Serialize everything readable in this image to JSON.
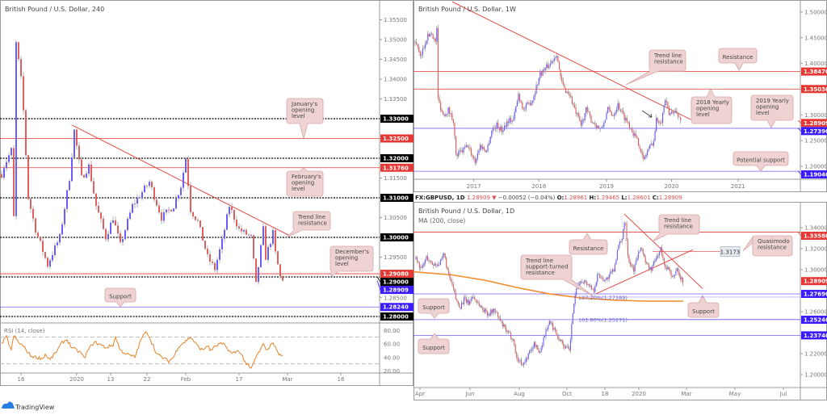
{
  "colors": {
    "up": "#6a5cff",
    "down": "#e06060",
    "wick": "#a0a0a0",
    "red_level": "#e53935",
    "blue_level": "#3b1cff",
    "black_level": "#000000",
    "callout_bg": "#efd3d3",
    "callout_border": "#d8a5a5",
    "ma": "#f08c2e",
    "rsi": "#e6832a"
  },
  "branding": {
    "logo_text": "TradingView"
  },
  "chart_data": [
    {
      "id": "h4",
      "type": "line",
      "title": "British Pound / U.S. Dollar, 240",
      "x_ticks": [
        {
          "x": 8,
          "label": "16"
        },
        {
          "x": 31,
          "label": "2020"
        },
        {
          "x": 45,
          "label": "13"
        },
        {
          "x": 60,
          "label": "22"
        },
        {
          "x": 76,
          "label": "Feb"
        },
        {
          "x": 98,
          "label": "17"
        },
        {
          "x": 118,
          "label": "Mar"
        },
        {
          "x": 140,
          "label": "16"
        }
      ],
      "y_ticks": [
        "1.35500",
        "1.35000",
        "1.34500",
        "1.34000",
        "1.33500",
        "1.31500",
        "1.30500",
        "1.29500",
        "1.28500"
      ],
      "ylim": [
        1.2775,
        1.3585
      ],
      "close_path": [
        [
          0,
          1.316
        ],
        [
          1,
          1.318
        ],
        [
          4,
          1.322
        ],
        [
          5,
          1.305
        ],
        [
          6,
          1.349
        ],
        [
          8,
          1.34
        ],
        [
          9,
          1.332
        ],
        [
          11,
          1.31
        ],
        [
          14,
          1.302
        ],
        [
          19,
          1.293
        ],
        [
          21,
          1.296
        ],
        [
          24,
          1.3
        ],
        [
          28,
          1.315
        ],
        [
          30,
          1.327
        ],
        [
          33,
          1.315
        ],
        [
          36,
          1.318
        ],
        [
          39,
          1.308
        ],
        [
          43,
          1.3
        ],
        [
          46,
          1.305
        ],
        [
          49,
          1.298
        ],
        [
          54,
          1.308
        ],
        [
          61,
          1.314
        ],
        [
          66,
          1.305
        ],
        [
          71,
          1.308
        ],
        [
          74,
          1.313
        ],
        [
          76,
          1.32
        ],
        [
          78,
          1.307
        ],
        [
          81,
          1.304
        ],
        [
          85,
          1.295
        ],
        [
          88,
          1.292
        ],
        [
          91,
          1.299
        ],
        [
          94,
          1.308
        ],
        [
          98,
          1.302
        ],
        [
          103,
          1.3
        ],
        [
          105,
          1.288
        ],
        [
          108,
          1.302
        ],
        [
          109,
          1.295
        ],
        [
          112,
          1.301
        ],
        [
          113,
          1.296
        ],
        [
          115,
          1.29
        ],
        [
          116,
          1.28909
        ]
      ],
      "levels": [
        {
          "price": 1.33,
          "label": "1.33000",
          "style": "black"
        },
        {
          "price": 1.325,
          "label": "1.32500",
          "style": "red"
        },
        {
          "price": 1.32,
          "label": "1.32000",
          "style": "black"
        },
        {
          "price": 1.3176,
          "label": "1.31760",
          "style": "red"
        },
        {
          "price": 1.31,
          "label": "1.31000",
          "style": "black"
        },
        {
          "price": 1.3,
          "label": "1.30000",
          "style": "black"
        },
        {
          "price": 1.2908,
          "label": "1.29080",
          "style": "red"
        },
        {
          "price": 1.29,
          "label": "1.29000",
          "style": "black"
        },
        {
          "price": 1.28909,
          "label": "1.28909",
          "style": "bluetag"
        },
        {
          "price": 1.2824,
          "label": "1.28240",
          "style": "blue"
        },
        {
          "price": 1.28,
          "label": "1.28000",
          "style": "black"
        }
      ],
      "trendlines": [
        {
          "from": [
            29,
            1.3284
          ],
          "to": [
            119,
            1.3004
          ]
        }
      ],
      "annotations": [
        {
          "text": [
            "January's",
            "opening",
            "level"
          ]
        },
        {
          "text": [
            "February's",
            "opening",
            "level"
          ]
        },
        {
          "text": [
            "Trend line",
            "resistance"
          ]
        },
        {
          "text": [
            "December's",
            "opening",
            "level"
          ]
        },
        {
          "text": [
            "Support"
          ]
        }
      ],
      "rsi": {
        "label": "RSI (14, close)",
        "ticks": [
          "80.00",
          "60.00",
          "40.00",
          "20.00"
        ],
        "bands": [
          70,
          30
        ],
        "values": [
          [
            0,
            60
          ],
          [
            2,
            70
          ],
          [
            4,
            50
          ],
          [
            5,
            72
          ],
          [
            7,
            62
          ],
          [
            9,
            56
          ],
          [
            12,
            42
          ],
          [
            14,
            40
          ],
          [
            17,
            38
          ],
          [
            18,
            44
          ],
          [
            20,
            36
          ],
          [
            23,
            50
          ],
          [
            25,
            62
          ],
          [
            27,
            66
          ],
          [
            29,
            54
          ],
          [
            31,
            50
          ],
          [
            33,
            46
          ],
          [
            34,
            38
          ],
          [
            36,
            52
          ],
          [
            38,
            62
          ],
          [
            40,
            60
          ],
          [
            43,
            54
          ],
          [
            46,
            58
          ],
          [
            47,
            70
          ],
          [
            49,
            50
          ],
          [
            52,
            44
          ],
          [
            55,
            40
          ],
          [
            58,
            70
          ],
          [
            60,
            78
          ],
          [
            64,
            45
          ],
          [
            66,
            40
          ],
          [
            69,
            34
          ],
          [
            71,
            40
          ],
          [
            73,
            56
          ],
          [
            76,
            64
          ],
          [
            78,
            70
          ],
          [
            81,
            56
          ],
          [
            83,
            50
          ],
          [
            85,
            58
          ],
          [
            86,
            50
          ],
          [
            90,
            60
          ],
          [
            92,
            58
          ],
          [
            95,
            45
          ],
          [
            98,
            50
          ],
          [
            101,
            30
          ],
          [
            103,
            22
          ],
          [
            105,
            40
          ],
          [
            108,
            58
          ],
          [
            110,
            50
          ],
          [
            111,
            60
          ],
          [
            113,
            58
          ],
          [
            114,
            45
          ],
          [
            116,
            42
          ]
        ]
      }
    },
    {
      "id": "w1",
      "type": "line",
      "title": "British Pound / U.S. Dollar, 1W",
      "x_ticks": [
        {
          "x": 46,
          "label": "2017"
        },
        {
          "x": 97,
          "label": "2018"
        },
        {
          "x": 150,
          "label": "2019"
        },
        {
          "x": 201,
          "label": "2020"
        },
        {
          "x": 253,
          "label": "2021"
        }
      ],
      "y_ticks": [
        "1.50000",
        "1.45000",
        "1.40000",
        "1.30000",
        "1.25000",
        "1.20000"
      ],
      "ylim": [
        1.175,
        1.52
      ],
      "close_path": [
        [
          0,
          1.44
        ],
        [
          1,
          1.44
        ],
        [
          4,
          1.41
        ],
        [
          9,
          1.45
        ],
        [
          13,
          1.46
        ],
        [
          16,
          1.44
        ],
        [
          17,
          1.47
        ],
        [
          18,
          1.33
        ],
        [
          22,
          1.3
        ],
        [
          26,
          1.31
        ],
        [
          30,
          1.29
        ],
        [
          32,
          1.22
        ],
        [
          37,
          1.23
        ],
        [
          41,
          1.24
        ],
        [
          47,
          1.21
        ],
        [
          51,
          1.24
        ],
        [
          56,
          1.23
        ],
        [
          60,
          1.27
        ],
        [
          64,
          1.28
        ],
        [
          68,
          1.27
        ],
        [
          73,
          1.29
        ],
        [
          77,
          1.29
        ],
        [
          81,
          1.34
        ],
        [
          85,
          1.31
        ],
        [
          92,
          1.33
        ],
        [
          98,
          1.38
        ],
        [
          102,
          1.39
        ],
        [
          106,
          1.4
        ],
        [
          111,
          1.42
        ],
        [
          114,
          1.37
        ],
        [
          117,
          1.35
        ],
        [
          121,
          1.34
        ],
        [
          125,
          1.31
        ],
        [
          130,
          1.28
        ],
        [
          134,
          1.31
        ],
        [
          138,
          1.29
        ],
        [
          142,
          1.28
        ],
        [
          146,
          1.27
        ],
        [
          151,
          1.31
        ],
        [
          155,
          1.3
        ],
        [
          159,
          1.32
        ],
        [
          163,
          1.3
        ],
        [
          168,
          1.28
        ],
        [
          172,
          1.26
        ],
        [
          176,
          1.24
        ],
        [
          179,
          1.21
        ],
        [
          182,
          1.23
        ],
        [
          187,
          1.25
        ],
        [
          189,
          1.29
        ],
        [
          193,
          1.29
        ],
        [
          196,
          1.33
        ],
        [
          199,
          1.3
        ],
        [
          203,
          1.31
        ],
        [
          208,
          1.28909
        ]
      ],
      "levels": [
        {
          "price": 1.3847,
          "label": "1.38470",
          "style": "red"
        },
        {
          "price": 1.3503,
          "label": "1.35030",
          "style": "red"
        },
        {
          "price": 1.28909,
          "label": "1.28909",
          "style": "redtag"
        },
        {
          "price": 1.2739,
          "label": "1.27390",
          "style": "blue"
        },
        {
          "price": 1.1904,
          "label": "1.19040",
          "style": "blue"
        }
      ],
      "trendlines": [
        {
          "from": [
            29,
            1.52
          ],
          "to": [
            216,
            1.291
          ]
        }
      ],
      "annotations": [
        {
          "text": [
            "Trend line",
            "resistance"
          ]
        },
        {
          "text": [
            "Resistance"
          ]
        },
        {
          "text": [
            "2018 Yearly",
            "opening",
            "level"
          ]
        },
        {
          "text": [
            "2019 Yearly",
            "opening",
            "level"
          ]
        },
        {
          "text": [
            "Potential support"
          ]
        }
      ]
    },
    {
      "id": "d1",
      "type": "line",
      "title": "British Pound / U.S. Dollar, 1D",
      "indicator_label": "MA (200, close)",
      "x_ticks": [
        {
          "x": 0,
          "label": "Apr"
        },
        {
          "x": 62,
          "label": "Jun"
        },
        {
          "x": 123,
          "label": "Aug"
        },
        {
          "x": 182,
          "label": "Oct"
        },
        {
          "x": 229,
          "label": "18"
        },
        {
          "x": 271,
          "label": "2020"
        },
        {
          "x": 330,
          "label": "Mar"
        },
        {
          "x": 390,
          "label": "May"
        },
        {
          "x": 450,
          "label": "Jul"
        }
      ],
      "y_ticks": [
        "1.34000",
        "1.32000",
        "1.30000",
        "1.26000",
        "1.22000",
        "1.20000"
      ],
      "ylim": [
        1.187,
        1.362
      ],
      "close_path": [
        [
          -5,
          1.31
        ],
        [
          2,
          1.3
        ],
        [
          8,
          1.312
        ],
        [
          15,
          1.305
        ],
        [
          25,
          1.306
        ],
        [
          30,
          1.315
        ],
        [
          35,
          1.295
        ],
        [
          40,
          1.285
        ],
        [
          45,
          1.27
        ],
        [
          50,
          1.265
        ],
        [
          55,
          1.272
        ],
        [
          60,
          1.268
        ],
        [
          65,
          1.275
        ],
        [
          70,
          1.27
        ],
        [
          78,
          1.262
        ],
        [
          85,
          1.258
        ],
        [
          92,
          1.262
        ],
        [
          100,
          1.25
        ],
        [
          108,
          1.24
        ],
        [
          115,
          1.235
        ],
        [
          120,
          1.215
        ],
        [
          128,
          1.21
        ],
        [
          135,
          1.22
        ],
        [
          142,
          1.23
        ],
        [
          148,
          1.22
        ],
        [
          155,
          1.24
        ],
        [
          160,
          1.25
        ],
        [
          165,
          1.245
        ],
        [
          172,
          1.235
        ],
        [
          178,
          1.228
        ],
        [
          185,
          1.222
        ],
        [
          190,
          1.265
        ],
        [
          195,
          1.285
        ],
        [
          202,
          1.29
        ],
        [
          210,
          1.285
        ],
        [
          215,
          1.28
        ],
        [
          220,
          1.295
        ],
        [
          230,
          1.29
        ],
        [
          240,
          1.3
        ],
        [
          245,
          1.32
        ],
        [
          250,
          1.33
        ],
        [
          254,
          1.35
        ],
        [
          258,
          1.31
        ],
        [
          265,
          1.3
        ],
        [
          270,
          1.315
        ],
        [
          275,
          1.32
        ],
        [
          280,
          1.305
        ],
        [
          286,
          1.3
        ],
        [
          292,
          1.31
        ],
        [
          298,
          1.32
        ],
        [
          302,
          1.305
        ],
        [
          308,
          1.3
        ],
        [
          313,
          1.29
        ],
        [
          318,
          1.302
        ],
        [
          322,
          1.292
        ],
        [
          326,
          1.28909
        ]
      ],
      "ma_200": [
        [
          -8,
          1.298
        ],
        [
          40,
          1.295
        ],
        [
          80,
          1.29
        ],
        [
          120,
          1.283
        ],
        [
          160,
          1.277
        ],
        [
          200,
          1.273
        ],
        [
          240,
          1.271
        ],
        [
          280,
          1.27
        ],
        [
          326,
          1.27
        ]
      ],
      "levels": [
        {
          "price": 1.3358,
          "label": "1.33580",
          "style": "red"
        },
        {
          "price": 1.28909,
          "label": "1.28909",
          "style": "redtag"
        },
        {
          "price": 1.2769,
          "label": "1.27690",
          "style": "blue"
        },
        {
          "price": 1.2524,
          "label": "1.25240",
          "style": "blue"
        },
        {
          "price": 1.2374,
          "label": "1.23740",
          "style": "blue"
        }
      ],
      "fib_labels": [
        {
          "price": 1.2739,
          "text": "127.20%(1.27389)"
        },
        {
          "price": 1.2527,
          "text": "161.80%(1.25271)"
        }
      ],
      "quasimodo": {
        "price": 1.3173,
        "label": "1.3173"
      },
      "trendlines": [
        {
          "from": [
            253,
            1.353
          ],
          "to": [
            350,
            1.282
          ]
        },
        {
          "from": [
            218,
            1.277
          ],
          "to": [
            338,
            1.319
          ]
        }
      ],
      "annotations": [
        {
          "text": [
            "Resistance"
          ]
        },
        {
          "text": [
            "Trend line",
            "resistance"
          ]
        },
        {
          "text": [
            "Quasimodo",
            "resistance"
          ]
        },
        {
          "text": [
            "Trend line",
            "support-turned",
            "resistance"
          ]
        },
        {
          "text": [
            "Support"
          ]
        },
        {
          "text": [
            "Support"
          ]
        },
        {
          "text": [
            "Support"
          ]
        }
      ],
      "header": {
        "symbol": "FX:GBPUSD, 1D",
        "last": "1.28909",
        "arrow": "▼",
        "change": "−0.00052 (−0.04%)",
        "o_label": "O:",
        "o": "1.28961",
        "h_label": "H:",
        "h": "1.29465",
        "l_label": "L:",
        "l": "1.28601",
        "c_label": "C:",
        "c": "1.28909"
      }
    }
  ]
}
